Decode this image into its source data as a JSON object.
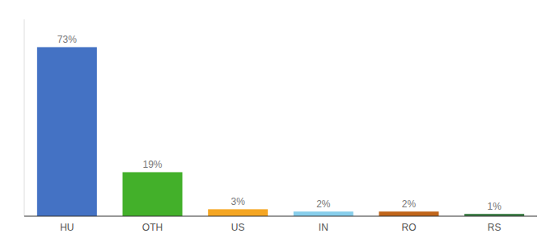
{
  "chart_data": {
    "type": "bar",
    "categories": [
      "HU",
      "OTH",
      "US",
      "IN",
      "RO",
      "RS"
    ],
    "values": [
      73,
      19,
      3,
      2,
      2,
      1
    ],
    "value_labels": [
      "73%",
      "19%",
      "3%",
      "2%",
      "2%",
      "1%"
    ],
    "colors": [
      "#4472C4",
      "#43B02A",
      "#F5A623",
      "#87CEEB",
      "#C0651A",
      "#3A7D44"
    ],
    "ylim": [
      0,
      85
    ],
    "data_labels": true,
    "tick_labels": "x"
  }
}
